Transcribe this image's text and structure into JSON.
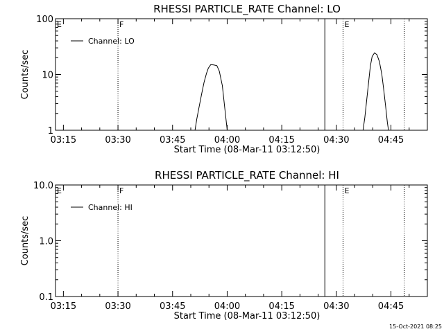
{
  "chart_data": [
    {
      "type": "line",
      "title": "RHESSI PARTICLE_RATE Channel: LO",
      "xlabel": "Start Time (08-Mar-11 03:12:50)",
      "ylabel": "Counts/sec",
      "yscale": "log",
      "ylim": [
        1,
        100
      ],
      "xlim": [
        "03:12:50",
        "04:55:00"
      ],
      "ytick_labels": [
        "1",
        "10",
        "100"
      ],
      "xtick_labels": [
        "03:15",
        "03:30",
        "03:45",
        "04:00",
        "04:15",
        "04:30",
        "04:45"
      ],
      "legend": {
        "position": "top-left",
        "entries": [
          "Channel: LO"
        ]
      },
      "markers": [
        {
          "time": "03:12:50",
          "label": "E",
          "style": "dotted"
        },
        {
          "time": "03:30:00",
          "label": "F",
          "style": "dotted"
        },
        {
          "time": "04:26:50",
          "label": "",
          "style": "solid"
        },
        {
          "time": "04:31:50",
          "label": "E",
          "style": "dotted"
        },
        {
          "time": "04:48:40",
          "label": "",
          "style": "dotted"
        }
      ],
      "series": [
        {
          "name": "Channel: LO",
          "segments": [
            {
              "x": [
                "03:51:10",
                "03:51:40",
                "03:52:20",
                "03:53:00",
                "03:53:40",
                "03:54:20",
                "03:54:50",
                "03:55:30",
                "03:56:20",
                "03:57:10",
                "03:57:50",
                "03:58:40",
                "03:59:20",
                "04:00:00"
              ],
              "y": [
                1.0,
                1.6,
                2.7,
                4.5,
                7.3,
                10.5,
                13.0,
                15.0,
                14.8,
                14.4,
                11.5,
                6.3,
                2.5,
                1.0
              ]
            },
            {
              "x": [
                "04:37:20",
                "04:37:50",
                "04:38:20",
                "04:38:50",
                "04:39:20",
                "04:39:50",
                "04:40:30",
                "04:41:10",
                "04:41:50",
                "04:42:30",
                "04:43:00",
                "04:43:30",
                "04:44:00",
                "04:44:20"
              ],
              "y": [
                1.0,
                1.7,
                3.5,
                7.0,
                14.0,
                21.0,
                24.5,
                22.5,
                17.0,
                10.0,
                5.5,
                2.8,
                1.4,
                1.0
              ]
            }
          ]
        }
      ]
    },
    {
      "type": "line",
      "title": "RHESSI PARTICLE_RATE Channel: HI",
      "xlabel": "Start Time (08-Mar-11 03:12:50)",
      "ylabel": "Counts/sec",
      "yscale": "log",
      "ylim": [
        0.1,
        10.0
      ],
      "xlim": [
        "03:12:50",
        "04:55:00"
      ],
      "ytick_labels": [
        "0.1",
        "1.0",
        "10.0"
      ],
      "xtick_labels": [
        "03:15",
        "03:30",
        "03:45",
        "04:00",
        "04:15",
        "04:30",
        "04:45"
      ],
      "legend": {
        "position": "top-left",
        "entries": [
          "Channel: HI"
        ]
      },
      "markers": [
        {
          "time": "03:12:50",
          "label": "E",
          "style": "dotted"
        },
        {
          "time": "03:30:00",
          "label": "F",
          "style": "dotted"
        },
        {
          "time": "04:26:50",
          "label": "",
          "style": "solid"
        },
        {
          "time": "04:31:50",
          "label": "E",
          "style": "dotted"
        },
        {
          "time": "04:48:40",
          "label": "",
          "style": "dotted"
        }
      ],
      "series": [
        {
          "name": "Channel: HI",
          "segments": []
        }
      ]
    }
  ],
  "footer": {
    "timestamp": "15-Oct-2021 08:25"
  }
}
